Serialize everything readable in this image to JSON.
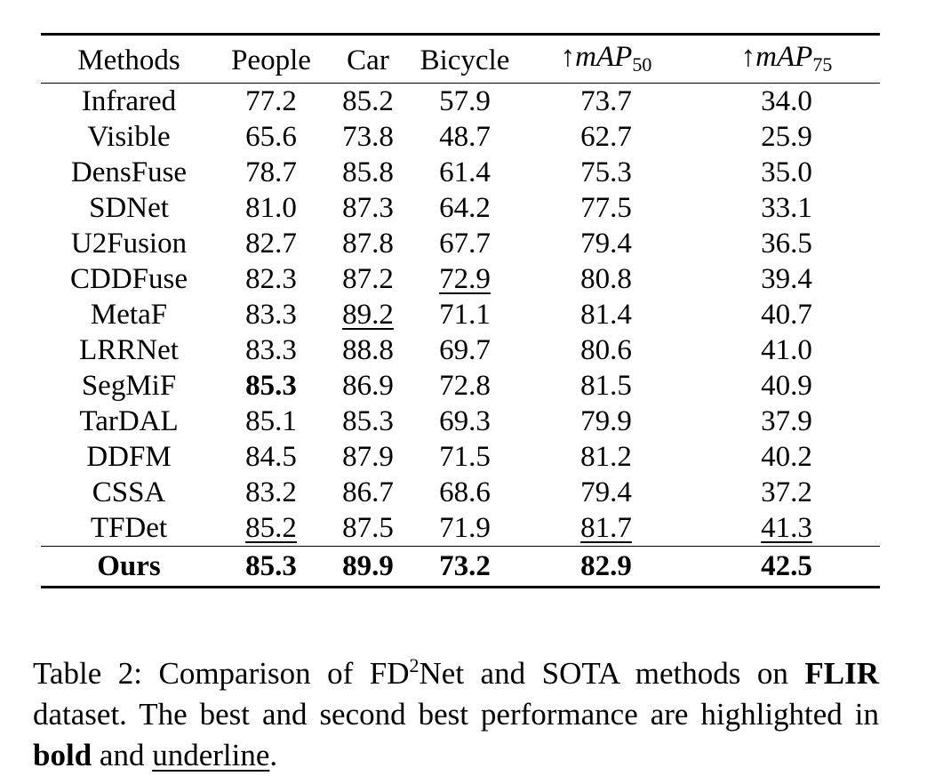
{
  "table": {
    "headers": [
      "Methods",
      "People",
      "Car",
      "Bicycle"
    ],
    "map50": {
      "arrow": "↑",
      "symbol": "mAP",
      "subscript": "50"
    },
    "map75": {
      "arrow": "↑",
      "symbol": "mAP",
      "subscript": "75"
    },
    "rows": [
      {
        "method": "Infrared",
        "values": [
          "77.2",
          "85.2",
          "57.9",
          "73.7",
          "34.0"
        ]
      },
      {
        "method": "Visible",
        "values": [
          "65.6",
          "73.8",
          "48.7",
          "62.7",
          "25.9"
        ]
      },
      {
        "method": "DensFuse",
        "values": [
          "78.7",
          "85.8",
          "61.4",
          "75.3",
          "35.0"
        ]
      },
      {
        "method": "SDNet",
        "values": [
          "81.0",
          "87.3",
          "64.2",
          "77.5",
          "33.1"
        ]
      },
      {
        "method": "U2Fusion",
        "values": [
          "82.7",
          "87.8",
          "67.7",
          "79.4",
          "36.5"
        ]
      },
      {
        "method": "CDDFuse",
        "values": [
          "82.3",
          "87.2",
          "72.9",
          "80.8",
          "39.4"
        ]
      },
      {
        "method": "MetaF",
        "values": [
          "83.3",
          "89.2",
          "71.1",
          "81.4",
          "40.7"
        ]
      },
      {
        "method": "LRRNet",
        "values": [
          "83.3",
          "88.8",
          "69.7",
          "80.6",
          "41.0"
        ]
      },
      {
        "method": "SegMiF",
        "values": [
          "85.3",
          "86.9",
          "72.8",
          "81.5",
          "40.9"
        ]
      },
      {
        "method": "TarDAL",
        "values": [
          "85.1",
          "85.3",
          "69.3",
          "79.9",
          "37.9"
        ]
      },
      {
        "method": "DDFM",
        "values": [
          "84.5",
          "87.9",
          "71.5",
          "81.2",
          "40.2"
        ]
      },
      {
        "method": "CSSA",
        "values": [
          "83.2",
          "86.7",
          "68.6",
          "79.4",
          "37.2"
        ]
      },
      {
        "method": "TFDet",
        "values": [
          "85.2",
          "87.5",
          "71.9",
          "81.7",
          "41.3"
        ]
      }
    ],
    "ours": {
      "method": "Ours",
      "values": [
        "85.3",
        "89.9",
        "73.2",
        "82.9",
        "42.5"
      ]
    },
    "bold_cells": [
      [
        8,
        0
      ]
    ],
    "underline_cells": [
      [
        5,
        2
      ],
      [
        6,
        1
      ],
      [
        12,
        0
      ],
      [
        12,
        3
      ],
      [
        12,
        4
      ]
    ]
  },
  "caption": {
    "label": "Table 2:",
    "part1": "Comparison of FD",
    "sup": "2",
    "part2": "Net and SOTA methods on",
    "dataset": "FLIR",
    "part3": "dataset. The best and second best performance are highlighted in",
    "bold_word": "bold",
    "and_word": "and",
    "underline_word": "underline",
    "end": "."
  }
}
